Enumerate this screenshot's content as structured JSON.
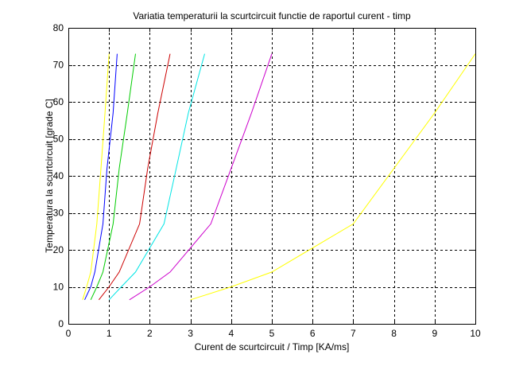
{
  "chart_data": {
    "type": "line",
    "title": "Variatia temperaturii la scurtcircuit functie de raportul curent - timp",
    "xlabel": "Curent de scurtcircuit / Timp [KA/ms]",
    "ylabel": "Temperatura la scurtcircuit [grade C]",
    "xlim": [
      0,
      10
    ],
    "ylim": [
      0,
      80
    ],
    "x_ticks": [
      "0",
      "1",
      "2",
      "3",
      "4",
      "5",
      "6",
      "7",
      "8",
      "9",
      "10"
    ],
    "y_ticks": [
      "0",
      "10",
      "20",
      "30",
      "40",
      "50",
      "60",
      "70",
      "80"
    ],
    "grid": true,
    "grid_style": "dashed",
    "series": [
      {
        "color": "#ffff00",
        "points": [
          [
            0.35,
            6.5
          ],
          [
            0.45,
            10
          ],
          [
            0.55,
            14
          ],
          [
            0.7,
            27
          ],
          [
            0.8,
            42
          ],
          [
            0.9,
            57
          ],
          [
            1.0,
            73
          ]
        ]
      },
      {
        "color": "#0000ff",
        "points": [
          [
            0.4,
            6.5
          ],
          [
            0.55,
            10
          ],
          [
            0.65,
            14
          ],
          [
            0.85,
            27
          ],
          [
            0.95,
            42
          ],
          [
            1.1,
            57
          ],
          [
            1.2,
            73
          ]
        ]
      },
      {
        "color": "#00cc00",
        "points": [
          [
            0.55,
            6.5
          ],
          [
            0.7,
            10
          ],
          [
            0.85,
            14
          ],
          [
            1.1,
            27
          ],
          [
            1.25,
            42
          ],
          [
            1.45,
            57
          ],
          [
            1.65,
            73
          ]
        ]
      },
      {
        "color": "#cc0000",
        "points": [
          [
            0.75,
            6.5
          ],
          [
            1.0,
            10
          ],
          [
            1.25,
            14
          ],
          [
            1.75,
            27
          ],
          [
            1.95,
            42
          ],
          [
            2.2,
            57
          ],
          [
            2.5,
            73
          ]
        ]
      },
      {
        "color": "#00e5e5",
        "points": [
          [
            1.0,
            6.5
          ],
          [
            1.3,
            10
          ],
          [
            1.65,
            14
          ],
          [
            2.35,
            27
          ],
          [
            2.65,
            42
          ],
          [
            2.95,
            57
          ],
          [
            3.35,
            73
          ]
        ]
      },
      {
        "color": "#cc00cc",
        "points": [
          [
            1.5,
            6.5
          ],
          [
            2.0,
            10
          ],
          [
            2.5,
            14
          ],
          [
            3.5,
            27
          ],
          [
            4.0,
            42
          ],
          [
            4.5,
            57
          ],
          [
            5.0,
            73
          ]
        ]
      },
      {
        "color": "#ffff00",
        "points": [
          [
            3.0,
            6.5
          ],
          [
            4.0,
            10
          ],
          [
            5.0,
            14
          ],
          [
            7.0,
            27
          ],
          [
            8.0,
            42
          ],
          [
            9.0,
            57
          ],
          [
            10.0,
            73
          ]
        ]
      }
    ]
  }
}
